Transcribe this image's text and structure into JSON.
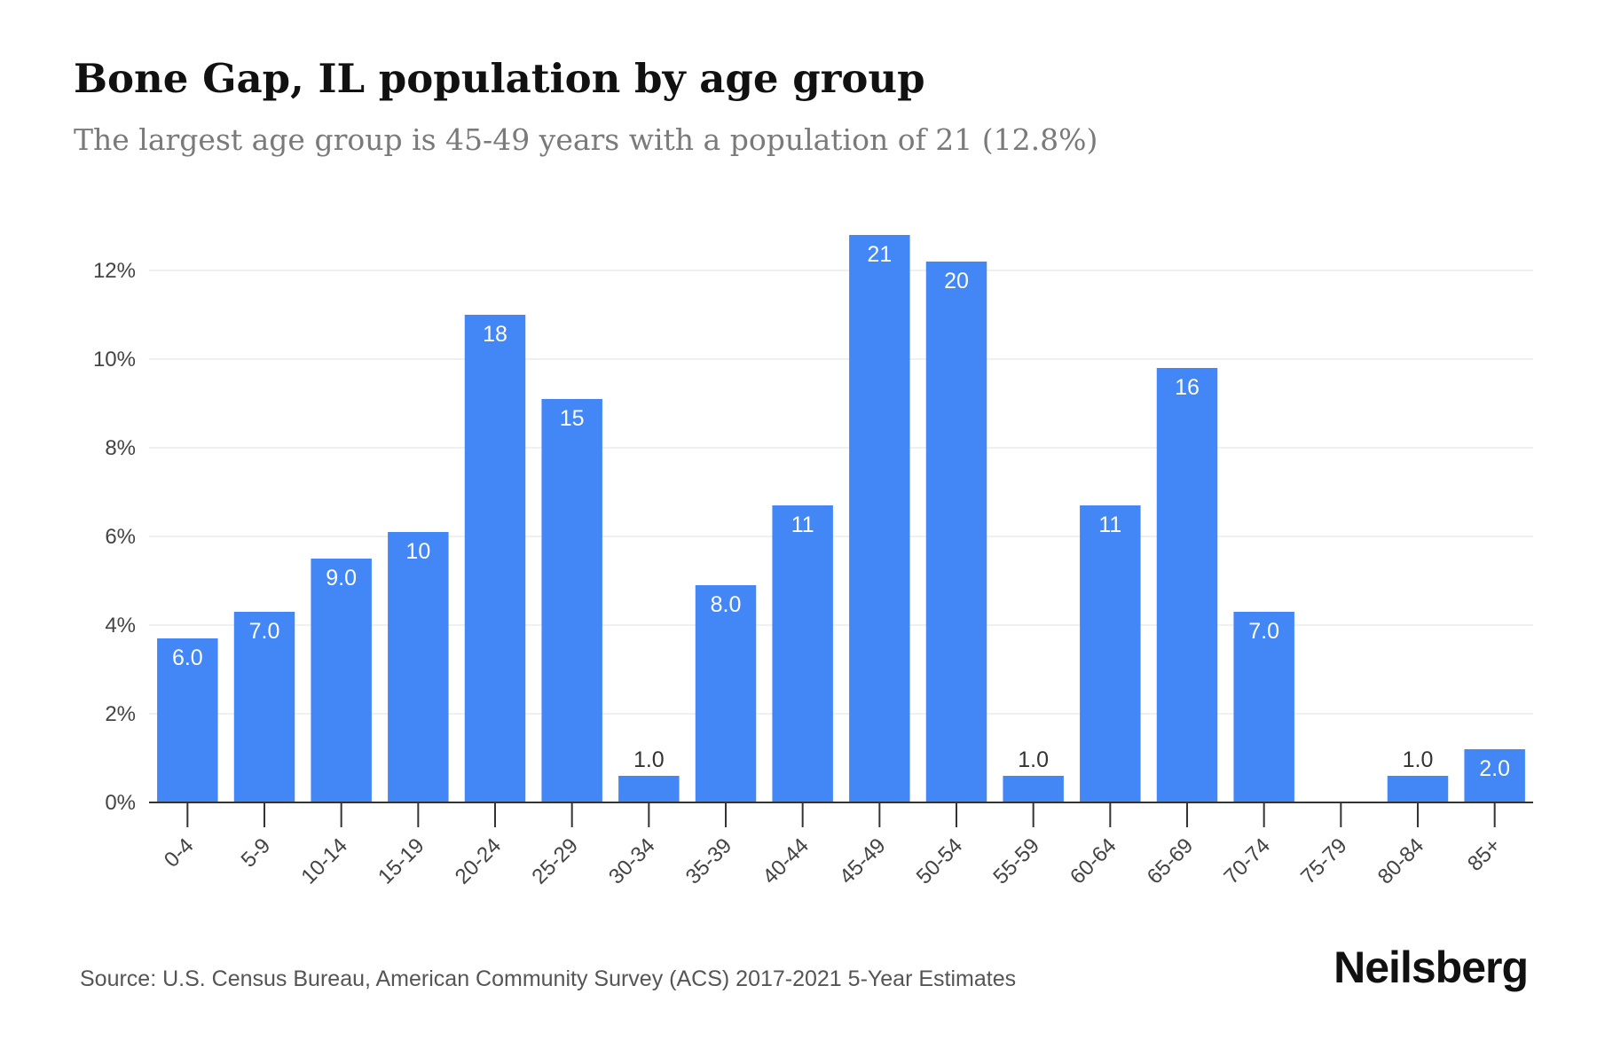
{
  "header": {
    "title": "Bone Gap, IL population by age group",
    "subtitle": "The largest age group is 45-49 years with a population of 21 (12.8%)"
  },
  "footer": {
    "source": "Source: U.S. Census Bureau, American Community Survey (ACS) 2017-2021 5-Year Estimates",
    "brand": "Neilsberg"
  },
  "colors": {
    "bar": "#4287f5",
    "grid": "#ececec",
    "axis": "#333333",
    "label_inside": "#ffffff",
    "label_outside": "#333333"
  },
  "chart_data": {
    "type": "bar",
    "title": "Bone Gap, IL population by age group",
    "subtitle": "The largest age group is 45-49 years with a population of 21 (12.8%)",
    "categories": [
      "0-4",
      "5-9",
      "10-14",
      "15-19",
      "20-24",
      "25-29",
      "30-34",
      "35-39",
      "40-44",
      "45-49",
      "50-54",
      "55-59",
      "60-64",
      "65-69",
      "70-74",
      "75-79",
      "80-84",
      "85+"
    ],
    "series": [
      {
        "percent": [
          3.7,
          4.3,
          5.5,
          6.1,
          11.0,
          9.1,
          0.6,
          4.9,
          6.7,
          12.8,
          12.2,
          0.6,
          6.7,
          9.8,
          4.3,
          0.0,
          0.6,
          1.2
        ],
        "labels": [
          "6.0",
          "7.0",
          "9.0",
          "10",
          "18",
          "15",
          "1.0",
          "8.0",
          "11",
          "21",
          "20",
          "1.0",
          "11",
          "16",
          "7.0",
          "",
          "1.0",
          "2.0"
        ]
      }
    ],
    "ylim": [
      0,
      13
    ],
    "yticks": [
      0,
      2,
      4,
      6,
      8,
      10,
      12
    ],
    "ytick_labels": [
      "0%",
      "2%",
      "4%",
      "6%",
      "8%",
      "10%",
      "12%"
    ],
    "grid": true,
    "legend": "none"
  }
}
